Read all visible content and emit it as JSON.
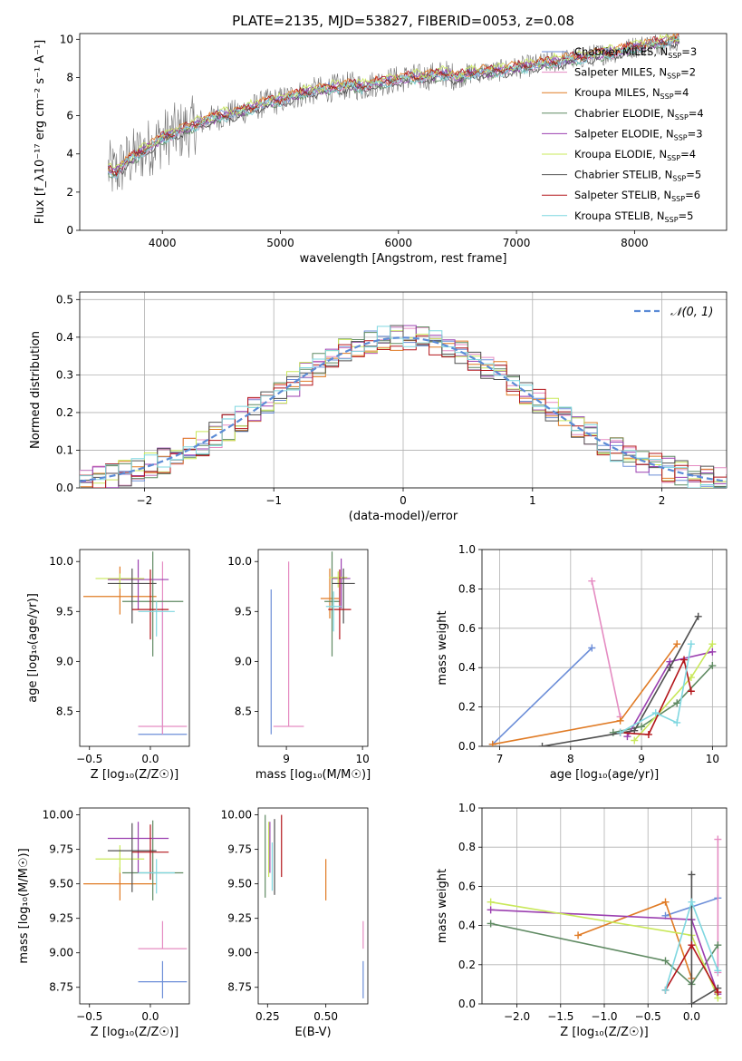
{
  "figure": {
    "title": "PLATE=2135, MJD=53827, FIBERID=0053, z=0.08"
  },
  "series_colors": {
    "Chabrier MILES": "#6c8ed8",
    "Salpeter MILES": "#e58cc2",
    "Kroupa MILES": "#e07b25",
    "Chabrier ELODIE": "#5f8a62",
    "Salpeter ELODIE": "#9b3fb0",
    "Kroupa ELODIE": "#c9e85a",
    "Chabrier STELIB": "#505050",
    "Salpeter STELIB": "#b3161b",
    "Kroupa STELIB": "#7fd7e0"
  },
  "chart_data": [
    {
      "id": "spectrum",
      "type": "line",
      "xlabel": "wavelength [Angstrom, rest frame]",
      "ylabel": "Flux [f_λ10⁻¹⁷ erg cm⁻² s⁻¹ A⁻¹]",
      "xlim": [
        3300,
        8780
      ],
      "ylim": [
        0,
        10.3
      ],
      "xticks": [
        4000,
        5000,
        6000,
        7000,
        8000
      ],
      "yticks": [
        0,
        2,
        4,
        6,
        8,
        10
      ],
      "grid": false,
      "legend_position": "right",
      "data_color": "#707070",
      "x": [
        3540,
        3600,
        3700,
        3800,
        3900,
        4000,
        4100,
        4200,
        4300,
        4400,
        4500,
        4600,
        4700,
        4800,
        4900,
        5000,
        5100,
        5200,
        5300,
        5400,
        5500,
        5600,
        5700,
        5800,
        5900,
        6000,
        6100,
        6200,
        6300,
        6400,
        6500,
        6600,
        6700,
        6800,
        6900,
        7000,
        7100,
        7200,
        7300,
        7400,
        7500,
        7600,
        7700,
        7800,
        7900,
        8000,
        8100,
        8200,
        8300,
        8380
      ],
      "data_flux": [
        3.2,
        3.0,
        3.6,
        4.0,
        4.4,
        4.8,
        5.1,
        5.3,
        5.6,
        5.8,
        6.0,
        6.1,
        6.3,
        6.5,
        6.7,
        6.8,
        7.0,
        7.2,
        7.3,
        7.4,
        7.5,
        7.6,
        7.5,
        7.7,
        7.8,
        7.9,
        8.0,
        8.0,
        8.1,
        8.2,
        8.0,
        8.2,
        8.3,
        8.3,
        8.4,
        8.5,
        8.6,
        8.7,
        8.8,
        8.9,
        9.0,
        9.1,
        9.2,
        9.3,
        9.4,
        9.6,
        9.7,
        9.8,
        9.9,
        10.0
      ],
      "series": [
        {
          "name": "Chabrier MILES",
          "nssp": "3",
          "offset": 0.05
        },
        {
          "name": "Salpeter MILES",
          "nssp": "2",
          "offset": -0.05
        },
        {
          "name": "Kroupa MILES",
          "nssp": "4",
          "offset": 0.1
        },
        {
          "name": "Chabrier ELODIE",
          "nssp": "4",
          "offset": -0.1
        },
        {
          "name": "Salpeter ELODIE",
          "nssp": "3",
          "offset": 0.0
        },
        {
          "name": "Kroupa ELODIE",
          "nssp": "4",
          "offset": 0.15
        },
        {
          "name": "Chabrier STELIB",
          "nssp": "5",
          "offset": -0.15
        },
        {
          "name": "Salpeter STELIB",
          "nssp": "6",
          "offset": 0.08
        },
        {
          "name": "Kroupa STELIB",
          "nssp": "5",
          "offset": -0.08
        }
      ]
    },
    {
      "id": "residuals",
      "type": "histogram",
      "xlabel": "(data-model)/error",
      "ylabel": "Normed distribution",
      "xlim": [
        -2.5,
        2.5
      ],
      "ylim": [
        0,
        0.52
      ],
      "xticks": [
        -2,
        -1,
        0,
        1,
        2
      ],
      "yticks": [
        0.0,
        0.1,
        0.2,
        0.3,
        0.4,
        0.5
      ],
      "grid": true,
      "legend_position": "top-right",
      "legend": "𝒩(0, 1)",
      "reference_color": "#5b8bd6",
      "bin_width": 0.1
    },
    {
      "id": "age-vs-Z",
      "type": "scatter",
      "xlabel": "Z [log₁₀(Z/Z☉)]",
      "ylabel": "age  [log₁₀(age/yr)]",
      "xlim": [
        -0.58,
        0.32
      ],
      "ylim": [
        8.15,
        10.12
      ],
      "xticks": [
        -0.5,
        0.0
      ],
      "yticks": [
        8.5,
        9.0,
        9.5,
        10.0
      ],
      "points": [
        {
          "series": "Chabrier MILES",
          "x": 0.1,
          "y": 8.27,
          "xerr": 0.2,
          "yerr_lo": 0.0,
          "yerr_hi": 1.35
        },
        {
          "series": "Salpeter MILES",
          "x": 0.1,
          "y": 8.35,
          "xerr": 0.2,
          "yerr_lo": 0.08,
          "yerr_hi": 1.65
        },
        {
          "series": "Kroupa MILES",
          "x": -0.25,
          "y": 9.65,
          "xerr": 0.3,
          "yerr_lo": 0.18,
          "yerr_hi": 0.3
        },
        {
          "series": "Chabrier ELODIE",
          "x": 0.02,
          "y": 9.6,
          "xerr": 0.25,
          "yerr_lo": 0.55,
          "yerr_hi": 0.5
        },
        {
          "series": "Salpeter ELODIE",
          "x": -0.1,
          "y": 9.82,
          "xerr": 0.25,
          "yerr_lo": 0.3,
          "yerr_hi": 0.2
        },
        {
          "series": "Kroupa ELODIE",
          "x": -0.25,
          "y": 9.83,
          "xerr": 0.2,
          "yerr_lo": 0.1,
          "yerr_hi": 0.05
        },
        {
          "series": "Chabrier STELIB",
          "x": -0.15,
          "y": 9.78,
          "xerr": 0.2,
          "yerr_lo": 0.4,
          "yerr_hi": 0.15
        },
        {
          "series": "Salpeter STELIB",
          "x": 0.0,
          "y": 9.52,
          "xerr": 0.15,
          "yerr_lo": 0.3,
          "yerr_hi": 0.4
        },
        {
          "series": "Kroupa STELIB",
          "x": 0.05,
          "y": 9.5,
          "xerr": 0.15,
          "yerr_lo": 0.25,
          "yerr_hi": 0.1
        }
      ]
    },
    {
      "id": "age-vs-mass",
      "type": "scatter",
      "xlabel": "mass [log₁₀(M/M☉)]",
      "xlim": [
        8.63,
        10.07
      ],
      "ylim": [
        8.15,
        10.12
      ],
      "xticks": [
        9,
        10
      ],
      "yticks": [
        8.5,
        9.0,
        9.5,
        10.0
      ],
      "points": [
        {
          "series": "Chabrier MILES",
          "x": 8.8,
          "y": 8.27,
          "xerr": 0.0,
          "yerr_lo": 0.0,
          "yerr_hi": 1.45
        },
        {
          "series": "Salpeter MILES",
          "x": 9.03,
          "y": 8.35,
          "xerr": 0.2,
          "yerr_lo": 0.0,
          "yerr_hi": 1.65
        },
        {
          "series": "Kroupa MILES",
          "x": 9.57,
          "y": 9.63,
          "xerr": 0.12,
          "yerr_lo": 0.2,
          "yerr_hi": 0.3
        },
        {
          "series": "Chabrier ELODIE",
          "x": 9.6,
          "y": 9.6,
          "xerr": 0.1,
          "yerr_lo": 0.55,
          "yerr_hi": 0.5
        },
        {
          "series": "Salpeter ELODIE",
          "x": 9.72,
          "y": 9.83,
          "xerr": 0.12,
          "yerr_lo": 0.3,
          "yerr_hi": 0.2
        },
        {
          "series": "Kroupa ELODIE",
          "x": 9.68,
          "y": 9.84,
          "xerr": 0.12,
          "yerr_lo": 0.1,
          "yerr_hi": 0.06
        },
        {
          "series": "Chabrier STELIB",
          "x": 9.75,
          "y": 9.78,
          "xerr": 0.15,
          "yerr_lo": 0.4,
          "yerr_hi": 0.15
        },
        {
          "series": "Salpeter STELIB",
          "x": 9.7,
          "y": 9.52,
          "xerr": 0.15,
          "yerr_lo": 0.3,
          "yerr_hi": 0.4
        },
        {
          "series": "Kroupa STELIB",
          "x": 9.62,
          "y": 9.55,
          "xerr": 0.1,
          "yerr_lo": 0.25,
          "yerr_hi": 0.15
        }
      ]
    },
    {
      "id": "weight-vs-age",
      "type": "line",
      "xlabel": "age  [log₁₀(age/yr)]",
      "ylabel": "mass weight",
      "xlim": [
        6.75,
        10.2
      ],
      "ylim": [
        0,
        1.0
      ],
      "xticks": [
        7,
        8,
        9,
        10
      ],
      "yticks": [
        0.0,
        0.2,
        0.4,
        0.6,
        0.8,
        1.0
      ],
      "grid": true,
      "series": [
        {
          "name": "Chabrier MILES",
          "x": [
            6.9,
            8.3
          ],
          "y": [
            0.01,
            0.5
          ]
        },
        {
          "name": "Salpeter MILES",
          "x": [
            8.3,
            8.7
          ],
          "y": [
            0.84,
            0.15
          ]
        },
        {
          "name": "Kroupa MILES",
          "x": [
            6.9,
            8.7,
            9.5
          ],
          "y": [
            0.01,
            0.13,
            0.52
          ]
        },
        {
          "name": "Chabrier ELODIE",
          "x": [
            8.6,
            9.0,
            9.5,
            10.0
          ],
          "y": [
            0.07,
            0.1,
            0.22,
            0.41
          ]
        },
        {
          "name": "Salpeter ELODIE",
          "x": [
            8.8,
            9.4,
            10.0
          ],
          "y": [
            0.05,
            0.43,
            0.48
          ]
        },
        {
          "name": "Kroupa ELODIE",
          "x": [
            8.9,
            9.7,
            10.0
          ],
          "y": [
            0.03,
            0.35,
            0.52
          ]
        },
        {
          "name": "Chabrier STELIB",
          "x": [
            7.6,
            8.9,
            9.4,
            9.8
          ],
          "y": [
            0.0,
            0.08,
            0.4,
            0.66
          ]
        },
        {
          "name": "Salpeter STELIB",
          "x": [
            8.7,
            9.1,
            9.6,
            9.7
          ],
          "y": [
            0.07,
            0.06,
            0.44,
            0.28
          ]
        },
        {
          "name": "Kroupa STELIB",
          "x": [
            8.7,
            9.2,
            9.5,
            9.7
          ],
          "y": [
            0.07,
            0.17,
            0.12,
            0.52
          ]
        }
      ]
    },
    {
      "id": "mass-vs-Z",
      "type": "scatter",
      "xlabel": "Z [log₁₀(Z/Z☉)]",
      "ylabel": "mass [log₁₀(M/M☉)]",
      "xlim": [
        -0.58,
        0.32
      ],
      "ylim": [
        8.63,
        10.05
      ],
      "xticks": [
        -0.5,
        0.0
      ],
      "yticks": [
        8.75,
        9.0,
        9.25,
        9.5,
        9.75,
        10.0
      ],
      "points": [
        {
          "series": "Chabrier MILES",
          "x": 0.1,
          "y": 8.79,
          "xerr": 0.2,
          "yerr_lo": 0.12,
          "yerr_hi": 0.15
        },
        {
          "series": "Salpeter MILES",
          "x": 0.1,
          "y": 9.03,
          "xerr": 0.2,
          "yerr_lo": 0.0,
          "yerr_hi": 0.2
        },
        {
          "series": "Kroupa MILES",
          "x": -0.25,
          "y": 9.5,
          "xerr": 0.3,
          "yerr_lo": 0.12,
          "yerr_hi": 0.12
        },
        {
          "series": "Chabrier ELODIE",
          "x": 0.02,
          "y": 9.58,
          "xerr": 0.25,
          "yerr_lo": 0.2,
          "yerr_hi": 0.38
        },
        {
          "series": "Salpeter ELODIE",
          "x": -0.1,
          "y": 9.83,
          "xerr": 0.25,
          "yerr_lo": 0.25,
          "yerr_hi": 0.12
        },
        {
          "series": "Kroupa ELODIE",
          "x": -0.25,
          "y": 9.68,
          "xerr": 0.2,
          "yerr_lo": 0.1,
          "yerr_hi": 0.1
        },
        {
          "series": "Chabrier STELIB",
          "x": -0.15,
          "y": 9.74,
          "xerr": 0.2,
          "yerr_lo": 0.3,
          "yerr_hi": 0.2
        },
        {
          "series": "Salpeter STELIB",
          "x": 0.0,
          "y": 9.73,
          "xerr": 0.15,
          "yerr_lo": 0.2,
          "yerr_hi": 0.2
        },
        {
          "series": "Kroupa STELIB",
          "x": 0.05,
          "y": 9.58,
          "xerr": 0.15,
          "yerr_lo": 0.15,
          "yerr_hi": 0.1
        }
      ]
    },
    {
      "id": "mass-vs-ebv",
      "type": "scatter",
      "xlabel": "E(B-V)",
      "xlim": [
        0.21,
        0.68
      ],
      "ylim": [
        8.63,
        10.05
      ],
      "xticks": [
        0.25,
        0.5
      ],
      "xtick_labels": [
        "0.25",
        "0.50"
      ],
      "yticks": [
        8.75,
        9.0,
        9.25,
        9.5,
        9.75,
        10.0
      ],
      "points": [
        {
          "series": "Chabrier MILES",
          "x": 0.66,
          "y": 8.79,
          "xerr": 0.0,
          "yerr_lo": 0.12,
          "yerr_hi": 0.15
        },
        {
          "series": "Salpeter MILES",
          "x": 0.66,
          "y": 9.03,
          "xerr": 0.0,
          "yerr_lo": 0.0,
          "yerr_hi": 0.2
        },
        {
          "series": "Kroupa MILES",
          "x": 0.5,
          "y": 9.5,
          "xerr": 0.0,
          "yerr_lo": 0.12,
          "yerr_hi": 0.18
        },
        {
          "series": "Chabrier ELODIE",
          "x": 0.24,
          "y": 9.6,
          "xerr": 0.0,
          "yerr_lo": 0.2,
          "yerr_hi": 0.4
        },
        {
          "series": "Salpeter ELODIE",
          "x": 0.26,
          "y": 9.83,
          "xerr": 0.0,
          "yerr_lo": 0.25,
          "yerr_hi": 0.12
        },
        {
          "series": "Kroupa ELODIE",
          "x": 0.255,
          "y": 9.7,
          "xerr": 0.0,
          "yerr_lo": 0.15,
          "yerr_hi": 0.25
        },
        {
          "series": "Chabrier STELIB",
          "x": 0.28,
          "y": 9.72,
          "xerr": 0.0,
          "yerr_lo": 0.3,
          "yerr_hi": 0.25
        },
        {
          "series": "Salpeter STELIB",
          "x": 0.31,
          "y": 9.75,
          "xerr": 0.0,
          "yerr_lo": 0.2,
          "yerr_hi": 0.25
        },
        {
          "series": "Kroupa STELIB",
          "x": 0.27,
          "y": 9.6,
          "xerr": 0.0,
          "yerr_lo": 0.15,
          "yerr_hi": 0.2
        }
      ]
    },
    {
      "id": "weight-vs-Z",
      "type": "line",
      "xlabel": "Z [log₁₀(Z/Z☉)]",
      "ylabel": "mass weight",
      "xlim": [
        -2.4,
        0.4
      ],
      "ylim": [
        0,
        1.0
      ],
      "xticks": [
        -2.0,
        -1.5,
        -1.0,
        -0.5,
        0.0
      ],
      "yticks": [
        0.0,
        0.2,
        0.4,
        0.6,
        0.8,
        1.0
      ],
      "grid": true,
      "series": [
        {
          "name": "Chabrier MILES",
          "x": [
            -0.3,
            0.3
          ],
          "y": [
            0.45,
            0.54
          ]
        },
        {
          "name": "Salpeter MILES",
          "x": [
            0.3,
            0.3
          ],
          "y": [
            0.84,
            0.16
          ]
        },
        {
          "name": "Kroupa MILES",
          "x": [
            -1.3,
            -0.3,
            0.0
          ],
          "y": [
            0.35,
            0.52,
            0.13
          ]
        },
        {
          "name": "Chabrier ELODIE",
          "x": [
            -2.3,
            -0.3,
            0.0,
            0.3
          ],
          "y": [
            0.41,
            0.22,
            0.1,
            0.3
          ]
        },
        {
          "name": "Salpeter ELODIE",
          "x": [
            -2.3,
            0.0,
            0.3
          ],
          "y": [
            0.48,
            0.43,
            0.05
          ]
        },
        {
          "name": "Kroupa ELODIE",
          "x": [
            -2.3,
            0.0,
            0.3
          ],
          "y": [
            0.52,
            0.35,
            0.03
          ]
        },
        {
          "name": "Chabrier STELIB",
          "x": [
            0.0,
            0.0,
            0.3
          ],
          "y": [
            0.66,
            0.0,
            0.08
          ]
        },
        {
          "name": "Salpeter STELIB",
          "x": [
            -0.3,
            0.0,
            0.3
          ],
          "y": [
            0.07,
            0.3,
            0.06
          ]
        },
        {
          "name": "Kroupa STELIB",
          "x": [
            -0.3,
            0.0,
            0.3
          ],
          "y": [
            0.07,
            0.52,
            0.17
          ]
        }
      ]
    }
  ]
}
